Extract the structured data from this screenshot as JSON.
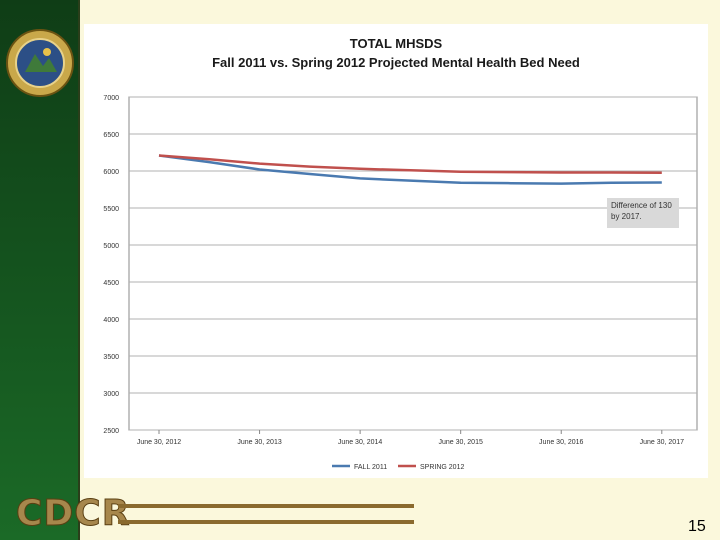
{
  "slide": {
    "logo_text": "CDCR",
    "page_number": "15",
    "colors": {
      "sidebar": "#15551f",
      "background": "#fbf8dc",
      "accent_bar": "#8a6a2e"
    }
  },
  "chart_data": {
    "type": "line",
    "title": "TOTAL MHSDS",
    "subtitle": "Fall 2011 vs. Spring 2012 Projected Mental Health Bed Need",
    "categories": [
      "June 30, 2012",
      "June 30, 2013",
      "June 30, 2014",
      "June 30, 2015",
      "June 30, 2016",
      "June 30, 2017"
    ],
    "x": [
      0,
      0.5,
      1,
      1.5,
      2,
      2.5,
      3,
      3.5,
      4,
      4.5,
      5
    ],
    "series": [
      {
        "name": "FALL 2011",
        "color": "#4a7ab0",
        "values": [
          6210,
          6120,
          6020,
          5960,
          5900,
          5870,
          5840,
          5835,
          5830,
          5840,
          5845
        ]
      },
      {
        "name": "SPRING 2012",
        "color": "#c0504d",
        "values": [
          6210,
          6160,
          6100,
          6060,
          6030,
          6010,
          5990,
          5985,
          5980,
          5980,
          5975
        ]
      }
    ],
    "ylim": [
      2500,
      7000
    ],
    "yticks": [
      2500,
      3000,
      3500,
      4000,
      4500,
      5000,
      5500,
      6000,
      6500,
      7000
    ],
    "ytick_labels": [
      "2500",
      "3000",
      "3500",
      "4000",
      "4500",
      "5000",
      "5500",
      "6000",
      "6500",
      "7000"
    ],
    "annotation": "Difference of 130 by 2017.",
    "legend_position": "bottom",
    "grid": true
  }
}
